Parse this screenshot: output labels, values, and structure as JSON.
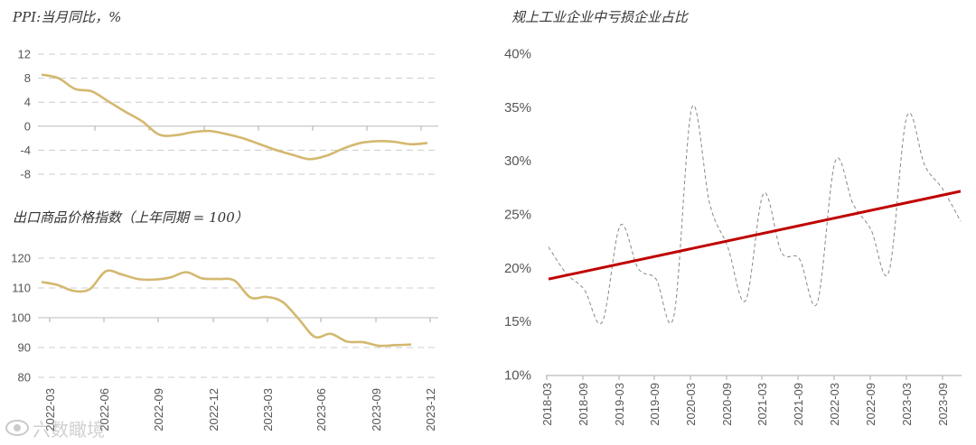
{
  "watermark": {
    "text": "六数瞰境",
    "icon": "eye-logo-icon"
  },
  "chart_data": [
    {
      "type": "line",
      "title": "PPI:当月同比，%",
      "xlabel": "",
      "ylabel": "",
      "ylim": [
        -8,
        12
      ],
      "yticks": [
        "12",
        "8",
        "4",
        "0",
        "-4",
        "-8"
      ],
      "xticks": [],
      "grid": true,
      "color": "#d4b86f",
      "series": [
        {
          "values": [
            8.6,
            8.0,
            6.2,
            5.8,
            4.1,
            2.4,
            0.8,
            -1.4,
            -1.5,
            -1.0,
            -0.8,
            -1.3,
            -2.0,
            -3.0,
            -4.0,
            -4.8,
            -5.5,
            -4.9,
            -3.7,
            -2.8,
            -2.5,
            -2.6,
            -3.0,
            -2.8
          ]
        }
      ]
    },
    {
      "type": "line",
      "title": "出口商品价格指数（上年同期 = 100）",
      "xlabel": "",
      "ylabel": "",
      "ylim": [
        80,
        120
      ],
      "yticks": [
        "120",
        "110",
        "100",
        "90",
        "80"
      ],
      "xticks": [
        "2022-03",
        "2022-06",
        "2022-09",
        "2022-12",
        "2023-03",
        "2023-06",
        "2023-09",
        "2023-12"
      ],
      "grid": true,
      "color": "#d4b86f",
      "series": [
        {
          "values": [
            112,
            111,
            109,
            109.6,
            115.6,
            114.5,
            113.0,
            112.8,
            113.5,
            115.3,
            113.2,
            113.0,
            112.5,
            106.8,
            107.0,
            105.3,
            99.6,
            93.6,
            94.6,
            92.0,
            91.8,
            90.6,
            90.8,
            91.0
          ]
        }
      ]
    },
    {
      "type": "line",
      "title": "规上工业企业中亏损企业占比",
      "xlabel": "",
      "ylabel": "",
      "ylim": [
        10,
        40
      ],
      "yticks": [
        "40%",
        "35%",
        "30%",
        "25%",
        "20%",
        "15%",
        "10%"
      ],
      "xticks": [
        "2018-03",
        "2018-09",
        "2019-03",
        "2019-09",
        "2020-03",
        "2020-09",
        "2021-03",
        "2021-09",
        "2022-03",
        "2022-09",
        "2023-03",
        "2023-09"
      ],
      "grid": false,
      "series": [
        {
          "style": "dashed",
          "color": "#888888",
          "values": [
            22,
            19.5,
            18,
            15,
            24,
            20,
            19,
            15.6,
            35,
            26,
            22,
            17,
            27,
            21.5,
            20.9,
            16.8,
            30,
            26,
            23.6,
            19.7,
            34.2,
            29.6,
            27.4,
            24.4
          ]
        },
        {
          "style": "trend",
          "color": "#c00000",
          "values": [
            19.0,
            27.2
          ]
        }
      ]
    }
  ]
}
